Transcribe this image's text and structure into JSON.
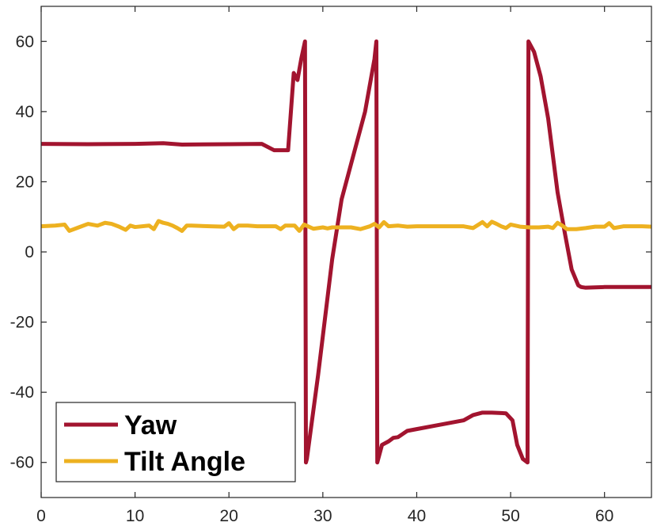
{
  "chart_data": {
    "type": "line",
    "title": "",
    "xlabel": "",
    "ylabel": "",
    "xlim": [
      0,
      65
    ],
    "ylim": [
      -70,
      70
    ],
    "xticks": [
      0,
      10,
      20,
      30,
      40,
      50,
      60
    ],
    "yticks": [
      -60,
      -40,
      -20,
      0,
      20,
      40,
      60
    ],
    "grid": false,
    "legend_position": "bottom-left",
    "series": [
      {
        "name": "Yaw",
        "color": "#a2142f",
        "x": [
          0,
          5,
          10,
          13,
          15,
          20,
          23.5,
          24.8,
          25.2,
          26.3,
          26.9,
          27.3,
          27.7,
          28.1,
          28.2,
          28.3,
          29.5,
          31,
          32,
          33,
          34.5,
          35.5,
          35.7,
          35.8,
          36.3,
          37,
          37.5,
          38,
          39,
          40,
          42,
          45,
          46,
          47,
          48,
          49.5,
          50.2,
          50.7,
          51.3,
          51.8,
          51.9,
          52.5,
          53.2,
          54,
          55,
          55.8,
          56.5,
          57.2,
          57.5,
          58,
          60,
          65
        ],
        "y": [
          30.8,
          30.7,
          30.8,
          31,
          30.6,
          30.7,
          30.8,
          29,
          29,
          29,
          51,
          49,
          55,
          60,
          -60,
          -59,
          -35,
          -2,
          15,
          25,
          40,
          55,
          60,
          -60,
          -55,
          -54,
          -53,
          -52.8,
          -51,
          -50.5,
          -49.5,
          -48,
          -46.5,
          -45.8,
          -45.8,
          -46,
          -48,
          -55,
          -59,
          -60,
          60,
          57,
          50,
          38,
          17,
          5,
          -5,
          -9.5,
          -10,
          -10.2,
          -10,
          -10
        ]
      },
      {
        "name": "Tilt Angle",
        "color": "#edb120",
        "x": [
          0,
          1.5,
          2.5,
          3,
          4,
          5,
          6,
          6.8,
          7.5,
          8.3,
          9,
          9.5,
          10,
          11.5,
          12,
          12.5,
          13,
          13.5,
          14,
          14.5,
          15,
          15.5,
          16,
          18,
          19.5,
          20,
          20.5,
          21,
          22,
          23,
          24,
          25,
          25.5,
          26,
          27,
          27.5,
          28,
          29,
          30,
          30.5,
          31,
          33,
          34,
          35,
          35.5,
          36,
          36.5,
          37,
          38,
          39,
          40,
          45,
          46,
          47,
          47.5,
          48,
          48.5,
          49,
          49.5,
          50,
          51,
          52,
          53,
          54,
          54.5,
          55,
          55.5,
          56,
          57,
          58,
          59,
          60,
          60.5,
          61,
          62,
          64,
          65
        ],
        "y": [
          7.3,
          7.5,
          7.8,
          6,
          7,
          8,
          7.5,
          8.3,
          8,
          7.2,
          6.3,
          7.5,
          7.1,
          7.5,
          6.5,
          8.8,
          8.3,
          8,
          7.5,
          6.8,
          6,
          7.5,
          7.5,
          7.3,
          7.2,
          8.2,
          6.5,
          7.5,
          7.5,
          7.3,
          7.3,
          7.3,
          6.5,
          7.5,
          7.5,
          6,
          7.8,
          6.6,
          7,
          6.7,
          7,
          7,
          6.5,
          7.3,
          8,
          7,
          8.5,
          7.3,
          7.5,
          7.2,
          7.3,
          7.3,
          6.8,
          8.5,
          7.3,
          8.6,
          8,
          7.3,
          6.8,
          7.8,
          7.2,
          7,
          7,
          7.2,
          6.8,
          8.3,
          7.5,
          6.5,
          6.5,
          6.8,
          7.2,
          7.2,
          8.2,
          6.8,
          7.3,
          7.3,
          7.2
        ]
      }
    ]
  }
}
